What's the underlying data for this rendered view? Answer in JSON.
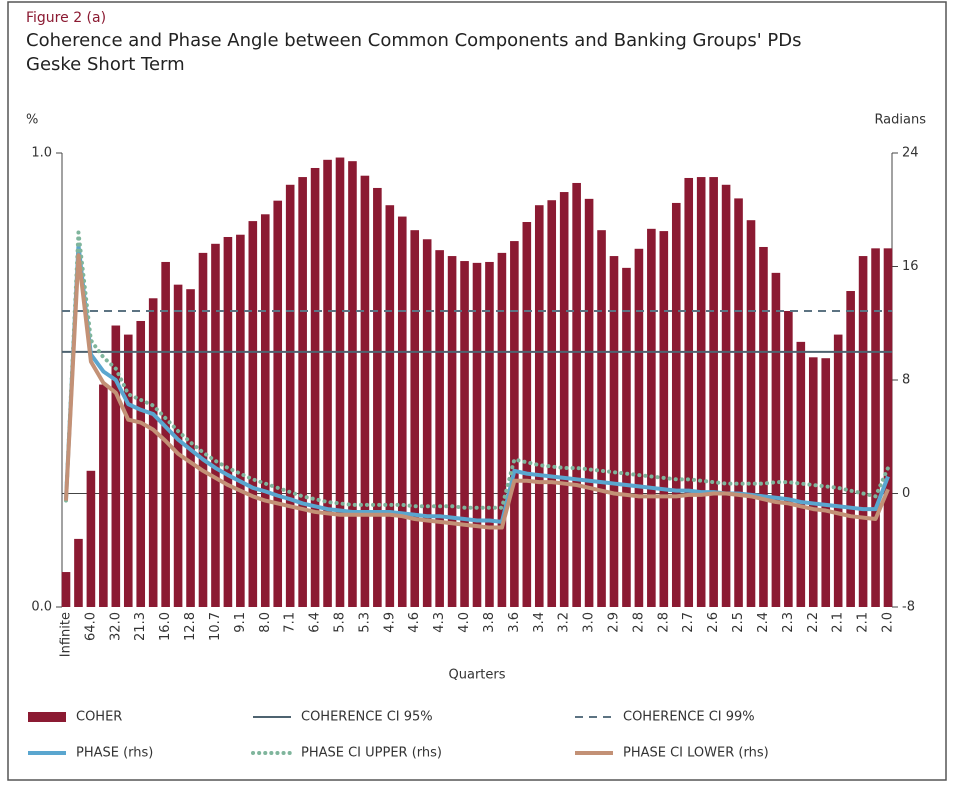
{
  "chart_data": {
    "type": "bar",
    "figure_label": "Figure 2 (a)",
    "title": "Coherence and Phase Angle between Common Components and Banking Groups' PDs",
    "subtitle": "Geske Short Term",
    "y_label": "%",
    "y2_label": "Radians",
    "x_label": "Quarters",
    "categories": [
      "Infinite",
      null,
      "64.0",
      null,
      "32.0",
      null,
      "21.3",
      null,
      "16.0",
      null,
      "12.8",
      null,
      "10.7",
      null,
      "9.1",
      null,
      "8.0",
      null,
      "7.1",
      null,
      "6.4",
      null,
      "5.8",
      null,
      "5.3",
      null,
      "4.9",
      null,
      "4.6",
      null,
      "4.3",
      null,
      "4.0",
      null,
      "3.8",
      null,
      "3.6",
      null,
      "3.4",
      null,
      "3.2",
      null,
      "3.0",
      null,
      "2.9",
      null,
      "2.8",
      null,
      "2.8",
      null,
      "2.7",
      null,
      "2.6",
      null,
      "2.5",
      null,
      "2.4",
      null,
      "2.3",
      null,
      "2.2",
      null,
      "2.1",
      null,
      "2.1",
      null,
      "2.0"
    ],
    "ylim": [
      0,
      1
    ],
    "yticks": [
      {
        "value": 0,
        "label": "0.0"
      },
      {
        "value": 1,
        "label": "1.0"
      }
    ],
    "y2lim": [
      -8,
      24
    ],
    "y2ticks": [
      -8,
      0,
      8,
      16,
      24
    ],
    "series": [
      {
        "name": "COHER",
        "kind": "bar",
        "color": "#8b1a32",
        "values": [
          0.077,
          0.15,
          0.3,
          0.49,
          0.62,
          0.6,
          0.63,
          0.68,
          0.76,
          0.71,
          0.7,
          0.78,
          0.8,
          0.815,
          0.82,
          0.85,
          0.865,
          0.895,
          0.93,
          0.947,
          0.967,
          0.985,
          0.99,
          0.982,
          0.95,
          0.923,
          0.885,
          0.86,
          0.83,
          0.81,
          0.786,
          0.773,
          0.762,
          0.758,
          0.76,
          0.78,
          0.806,
          0.848,
          0.885,
          0.896,
          0.914,
          0.934,
          0.899,
          0.83,
          0.773,
          0.747,
          0.789,
          0.833,
          0.828,
          0.89,
          0.945,
          0.947,
          0.947,
          0.93,
          0.9,
          0.852,
          0.793,
          0.736,
          0.652,
          0.584,
          0.55,
          0.548,
          0.6,
          0.696,
          0.773,
          0.79,
          0.79
        ]
      },
      {
        "name": "COHERENCE CI 95%",
        "kind": "hline",
        "style": "solid",
        "color": "#4e6370",
        "value": 0.562
      },
      {
        "name": "COHERENCE CI 99%",
        "kind": "hline",
        "style": "dashed",
        "color": "#5c7382",
        "value": 0.652
      },
      {
        "name": "PHASE (rhs)",
        "kind": "line",
        "style": "solid",
        "axis": "y2",
        "color": "#5aa6cf",
        "values": [
          -0.4,
          17.5,
          9.8,
          8.6,
          8.0,
          6.3,
          5.9,
          5.6,
          4.7,
          3.8,
          3.1,
          2.4,
          1.8,
          1.3,
          0.85,
          0.4,
          0.15,
          -0.15,
          -0.4,
          -0.7,
          -0.9,
          -1.1,
          -1.2,
          -1.3,
          -1.3,
          -1.3,
          -1.3,
          -1.4,
          -1.5,
          -1.6,
          -1.6,
          -1.7,
          -1.8,
          -1.9,
          -1.9,
          -2.0,
          1.6,
          1.4,
          1.3,
          1.2,
          1.1,
          1.0,
          0.9,
          0.8,
          0.7,
          0.6,
          0.5,
          0.4,
          0.3,
          0.2,
          0.2,
          0.1,
          0.1,
          0.0,
          0.0,
          -0.1,
          -0.2,
          -0.3,
          -0.4,
          -0.6,
          -0.7,
          -0.8,
          -0.9,
          -1.0,
          -1.1,
          -1.1,
          1.2
        ]
      },
      {
        "name": "PHASE CI UPPER (rhs)",
        "kind": "line",
        "style": "dotted",
        "axis": "y2",
        "color": "#7fb59c",
        "values": [
          -0.5,
          18.4,
          10.8,
          9.6,
          8.8,
          7.0,
          6.6,
          6.2,
          5.3,
          4.4,
          3.6,
          2.9,
          2.3,
          1.8,
          1.4,
          1.0,
          0.7,
          0.4,
          0.1,
          -0.2,
          -0.4,
          -0.6,
          -0.7,
          -0.8,
          -0.8,
          -0.8,
          -0.8,
          -0.8,
          -0.9,
          -0.9,
          -0.9,
          -0.9,
          -1.0,
          -1.0,
          -1.0,
          -1.0,
          2.4,
          2.2,
          2.0,
          1.9,
          1.8,
          1.8,
          1.7,
          1.6,
          1.5,
          1.4,
          1.3,
          1.2,
          1.1,
          1.0,
          1.0,
          0.9,
          0.8,
          0.7,
          0.7,
          0.7,
          0.7,
          0.8,
          0.8,
          0.7,
          0.6,
          0.5,
          0.4,
          0.2,
          0.0,
          -0.2,
          1.8
        ]
      },
      {
        "name": "PHASE CI LOWER (rhs)",
        "kind": "line",
        "style": "solid",
        "axis": "y2",
        "color": "#c39176",
        "values": [
          -0.5,
          16.8,
          9.3,
          7.8,
          7.1,
          5.2,
          5.0,
          4.5,
          3.7,
          2.8,
          2.2,
          1.6,
          1.1,
          0.6,
          0.2,
          -0.2,
          -0.5,
          -0.7,
          -0.9,
          -1.1,
          -1.3,
          -1.4,
          -1.5,
          -1.5,
          -1.5,
          -1.5,
          -1.5,
          -1.6,
          -1.8,
          -1.9,
          -2.0,
          -2.1,
          -2.2,
          -2.3,
          -2.4,
          -2.4,
          0.9,
          0.9,
          0.8,
          0.8,
          0.7,
          0.6,
          0.4,
          0.2,
          0.0,
          -0.1,
          -0.2,
          -0.2,
          -0.2,
          -0.2,
          -0.1,
          -0.1,
          0.0,
          0.0,
          -0.1,
          -0.2,
          -0.4,
          -0.6,
          -0.7,
          -0.9,
          -1.1,
          -1.2,
          -1.4,
          -1.6,
          -1.7,
          -1.8,
          0.3
        ]
      }
    ]
  }
}
